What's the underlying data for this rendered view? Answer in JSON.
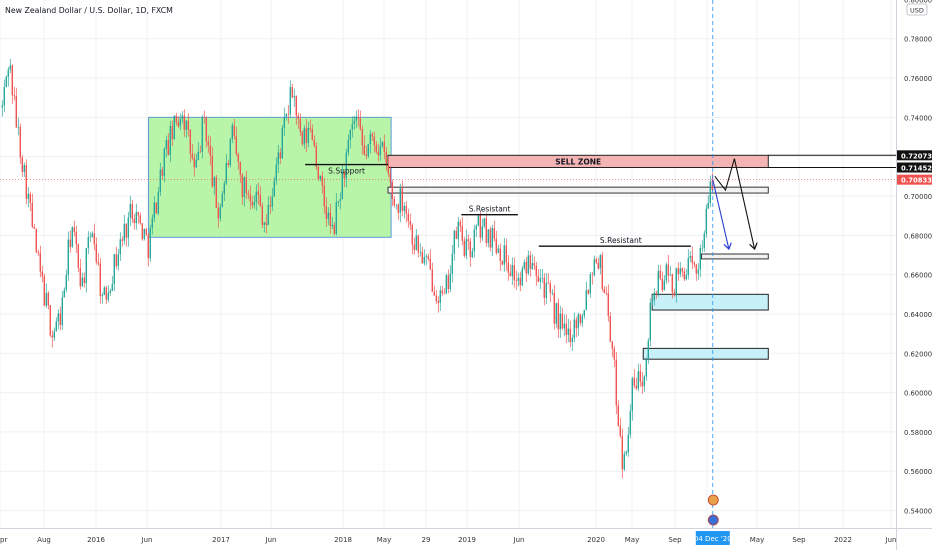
{
  "header": {
    "symbol_title": "New Zealand Dollar / U.S. Dollar, 1D, FXCM",
    "currency_badge": "USD"
  },
  "colors": {
    "grid": "#eef0f3",
    "candle_up": "#26a69a",
    "candle_down": "#ef5350",
    "range_box_fill": "#b9f5a8",
    "range_box_border": "#5b9bd5",
    "sell_zone_fill": "#f4b4b4",
    "demand_zone_fill": "#c8f0f8",
    "current_price_bg": "#ef5350",
    "date_badge_bg": "#2196f3",
    "arrow_blue": "#2b3bd0",
    "arrow_black": "#111111"
  },
  "chart_data": {
    "type": "candlestick",
    "title": "New Zealand Dollar / U.S. Dollar, 1D, FXCM",
    "y_unit": "USD",
    "ylim": [
      0.535,
      0.8
    ],
    "grid": true,
    "x_ticks": [
      "pr",
      "Aug",
      "2016",
      "Jun",
      "2017",
      "Jun",
      "2018",
      "May",
      "29",
      "2019",
      "Jun",
      "2020",
      "May",
      "Sep",
      "04 Dec '20",
      "May",
      "Sep",
      "2022",
      "Jun"
    ],
    "y_ticks": [
      "0.54000",
      "0.56000",
      "0.58000",
      "0.60000",
      "0.62000",
      "0.64000",
      "0.66000",
      "0.68000",
      "0.70000",
      "0.72000",
      "0.74000",
      "0.76000",
      "0.78000",
      "0.80000"
    ],
    "current_price": "0.70833",
    "price_labels": [
      "0.72073",
      "0.71452",
      "0.70833"
    ],
    "current_date_label": "04 Dec '20",
    "annotations": {
      "sell_zone": "SELL ZONE",
      "support": "S.Support",
      "resistance_1": "S.Resistant",
      "resistance_2": "S.Resistant"
    },
    "price_path": [
      {
        "date": "2015-04-01",
        "close": 0.745
      },
      {
        "date": "2015-04-20",
        "close": 0.77
      },
      {
        "date": "2015-05-10",
        "close": 0.74
      },
      {
        "date": "2015-06-15",
        "close": 0.7
      },
      {
        "date": "2015-07-15",
        "close": 0.665
      },
      {
        "date": "2015-08-25",
        "close": 0.63
      },
      {
        "date": "2015-09-20",
        "close": 0.64
      },
      {
        "date": "2015-10-20",
        "close": 0.685
      },
      {
        "date": "2015-11-20",
        "close": 0.655
      },
      {
        "date": "2015-12-20",
        "close": 0.685
      },
      {
        "date": "2016-01-20",
        "close": 0.645
      },
      {
        "date": "2016-03-01",
        "close": 0.67
      },
      {
        "date": "2016-04-15",
        "close": 0.695
      },
      {
        "date": "2016-06-01",
        "close": 0.675
      },
      {
        "date": "2016-07-15",
        "close": 0.72
      },
      {
        "date": "2016-09-07",
        "close": 0.745
      },
      {
        "date": "2016-10-15",
        "close": 0.71
      },
      {
        "date": "2016-11-10",
        "close": 0.74
      },
      {
        "date": "2016-12-20",
        "close": 0.69
      },
      {
        "date": "2017-02-01",
        "close": 0.73
      },
      {
        "date": "2017-03-01",
        "close": 0.705
      },
      {
        "date": "2017-04-15",
        "close": 0.7
      },
      {
        "date": "2017-05-10",
        "close": 0.685
      },
      {
        "date": "2017-06-15",
        "close": 0.72
      },
      {
        "date": "2017-07-27",
        "close": 0.755
      },
      {
        "date": "2017-08-20",
        "close": 0.725
      },
      {
        "date": "2017-09-20",
        "close": 0.735
      },
      {
        "date": "2017-10-20",
        "close": 0.7
      },
      {
        "date": "2017-11-20",
        "close": 0.68
      },
      {
        "date": "2017-12-20",
        "close": 0.71
      },
      {
        "date": "2018-01-25",
        "close": 0.74
      },
      {
        "date": "2018-02-20",
        "close": 0.72
      },
      {
        "date": "2018-03-20",
        "close": 0.73
      },
      {
        "date": "2018-04-20",
        "close": 0.72
      },
      {
        "date": "2018-05-20",
        "close": 0.695
      },
      {
        "date": "2018-06-15",
        "close": 0.7
      },
      {
        "date": "2018-07-10",
        "close": 0.68
      },
      {
        "date": "2018-08-20",
        "close": 0.665
      },
      {
        "date": "2018-10-10",
        "close": 0.645
      },
      {
        "date": "2018-11-20",
        "close": 0.685
      },
      {
        "date": "2018-12-20",
        "close": 0.67
      },
      {
        "date": "2019-01-20",
        "close": 0.685
      },
      {
        "date": "2019-03-01",
        "close": 0.68
      },
      {
        "date": "2019-04-20",
        "close": 0.665
      },
      {
        "date": "2019-05-20",
        "close": 0.655
      },
      {
        "date": "2019-06-25",
        "close": 0.672
      },
      {
        "date": "2019-08-10",
        "close": 0.65
      },
      {
        "date": "2019-10-01",
        "close": 0.628
      },
      {
        "date": "2019-11-15",
        "close": 0.64
      },
      {
        "date": "2019-12-31",
        "close": 0.673
      },
      {
        "date": "2020-02-01",
        "close": 0.645
      },
      {
        "date": "2020-03-19",
        "close": 0.56
      },
      {
        "date": "2020-04-10",
        "close": 0.6
      },
      {
        "date": "2020-05-15",
        "close": 0.61
      },
      {
        "date": "2020-06-10",
        "close": 0.65
      },
      {
        "date": "2020-07-15",
        "close": 0.66
      },
      {
        "date": "2020-08-15",
        "close": 0.655
      },
      {
        "date": "2020-09-15",
        "close": 0.665
      },
      {
        "date": "2020-10-15",
        "close": 0.66
      },
      {
        "date": "2020-11-15",
        "close": 0.69
      },
      {
        "date": "2020-12-04",
        "close": 0.7083
      }
    ],
    "zones": [
      {
        "kind": "range",
        "from": "2016-06-01",
        "to": "2018-05-10",
        "low": 0.679,
        "high": 0.74
      },
      {
        "kind": "sell",
        "from": "2018-05-01",
        "to": "2021-05-15",
        "low": 0.7145,
        "high": 0.7207
      },
      {
        "kind": "outline",
        "from": "2018-05-01",
        "to": "2021-05-15",
        "low": 0.7015,
        "high": 0.7045
      },
      {
        "kind": "outline",
        "from": "2020-11-01",
        "to": "2021-05-15",
        "low": 0.668,
        "high": 0.6705
      },
      {
        "kind": "demand",
        "from": "2020-06-10",
        "to": "2021-05-15",
        "low": 0.642,
        "high": 0.65
      },
      {
        "kind": "demand",
        "from": "2020-05-15",
        "to": "2021-05-15",
        "low": 0.617,
        "high": 0.6225
      }
    ],
    "level_lines": [
      {
        "kind": "support",
        "from": "2017-09-01",
        "to": "2018-05-01",
        "value": 0.716
      },
      {
        "kind": "resistance_1",
        "from": "2018-12-01",
        "to": "2019-05-15",
        "value": 0.6905
      },
      {
        "kind": "resistance_2",
        "from": "2019-07-15",
        "to": "2020-10-01",
        "value": 0.6745
      }
    ],
    "arrows": [
      {
        "color": "blue",
        "path": [
          {
            "date": "2020-12-04",
            "v": 0.7083
          },
          {
            "date": "2021-01-20",
            "v": 0.673
          }
        ]
      },
      {
        "color": "black",
        "path": [
          {
            "date": "2020-12-10",
            "v": 0.71
          },
          {
            "date": "2021-01-10",
            "v": 0.703
          },
          {
            "date": "2021-02-05",
            "v": 0.719
          },
          {
            "date": "2021-04-05",
            "v": 0.673
          }
        ]
      }
    ]
  }
}
